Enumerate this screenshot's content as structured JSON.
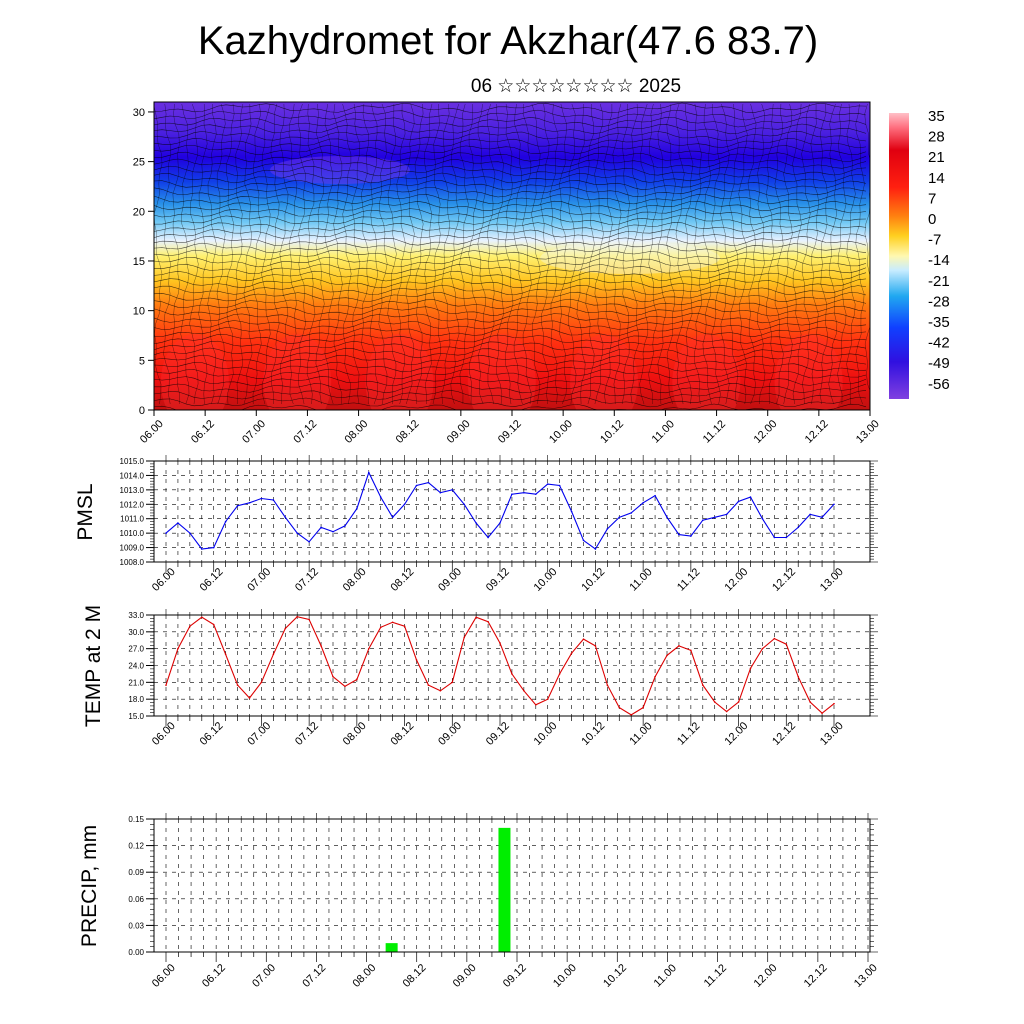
{
  "header": {
    "title": "Kazhydromet for Akzhar(47.6 83.7)",
    "subtitle": "06 ☆☆☆☆☆☆☆☆ 2025"
  },
  "time_labels": [
    "06.00",
    "06.12",
    "07.00",
    "07.12",
    "08.00",
    "08.12",
    "09.00",
    "09.12",
    "10.00",
    "10.12",
    "11.00",
    "11.12",
    "12.00",
    "12.12",
    "13.00"
  ],
  "chart_data": [
    {
      "type": "heatmap",
      "title": "",
      "xlabel": "",
      "ylabel": "",
      "x_categories": [
        "06.00",
        "06.12",
        "07.00",
        "07.12",
        "08.00",
        "08.12",
        "09.00",
        "09.12",
        "10.00",
        "10.12",
        "11.00",
        "11.12",
        "12.00",
        "12.12",
        "13.00"
      ],
      "yticks": [
        0,
        5,
        10,
        15,
        20,
        25,
        30
      ],
      "ylim": [
        0,
        31
      ],
      "colorbar": {
        "labels": [
          "35",
          "28",
          "21",
          "14",
          "7",
          "0",
          "-7",
          "-14",
          "-21",
          "-28",
          "-35",
          "-42",
          "-49",
          "-56"
        ],
        "range": [
          -63,
          42
        ]
      },
      "grid": false,
      "legend": "colorbar-right"
    },
    {
      "type": "line",
      "ylabel": "PMSL",
      "xlabel": "",
      "x": [
        "06.00",
        "06.03",
        "06.06",
        "06.09",
        "06.12",
        "06.15",
        "06.18",
        "06.21",
        "07.00",
        "07.03",
        "07.06",
        "07.09",
        "07.12",
        "07.15",
        "07.18",
        "07.21",
        "08.00",
        "08.03",
        "08.06",
        "08.09",
        "08.12",
        "08.15",
        "08.18",
        "08.21",
        "09.00",
        "09.03",
        "09.06",
        "09.09",
        "09.12",
        "09.15",
        "09.18",
        "09.21",
        "10.00",
        "10.03",
        "10.06",
        "10.09",
        "10.12",
        "10.15",
        "10.18",
        "10.21",
        "11.00",
        "11.03",
        "11.06",
        "11.09",
        "11.12",
        "11.15",
        "11.18",
        "11.21",
        "12.00",
        "12.03",
        "12.06",
        "12.09",
        "12.12",
        "12.15",
        "12.18",
        "12.21",
        "13.00"
      ],
      "values": [
        1010.0,
        1010.7,
        1010.0,
        1008.9,
        1009.0,
        1010.8,
        1011.9,
        1012.1,
        1012.4,
        1012.3,
        1011.1,
        1010.0,
        1009.4,
        1010.4,
        1010.1,
        1010.5,
        1011.7,
        1014.2,
        1012.5,
        1011.1,
        1012.0,
        1013.3,
        1013.5,
        1012.8,
        1013.0,
        1012.0,
        1010.7,
        1009.7,
        1010.7,
        1012.7,
        1012.8,
        1012.7,
        1013.4,
        1013.3,
        1011.5,
        1009.5,
        1008.9,
        1010.3,
        1011.1,
        1011.4,
        1012.1,
        1012.6,
        1011.1,
        1009.9,
        1009.8,
        1010.9,
        1011.1,
        1011.3,
        1012.2,
        1012.5,
        1011.0,
        1009.7,
        1009.7,
        1010.4,
        1011.3,
        1011.1,
        1012.0
      ],
      "ylim": [
        1008.0,
        1015.0
      ],
      "yticks": [
        "1008.0",
        "1009.0",
        "1010.0",
        "1011.0",
        "1012.0",
        "1013.0",
        "1014.0",
        "1015.0"
      ],
      "color": "#0000ee",
      "grid": true
    },
    {
      "type": "line",
      "ylabel": "TEMP at 2 M",
      "xlabel": "",
      "x": [
        "06.00",
        "06.03",
        "06.06",
        "06.09",
        "06.12",
        "06.15",
        "06.18",
        "06.21",
        "07.00",
        "07.03",
        "07.06",
        "07.09",
        "07.12",
        "07.15",
        "07.18",
        "07.21",
        "08.00",
        "08.03",
        "08.06",
        "08.09",
        "08.12",
        "08.15",
        "08.18",
        "08.21",
        "09.00",
        "09.03",
        "09.06",
        "09.09",
        "09.12",
        "09.15",
        "09.18",
        "09.21",
        "10.00",
        "10.03",
        "10.06",
        "10.09",
        "10.12",
        "10.15",
        "10.18",
        "10.21",
        "11.00",
        "11.03",
        "11.06",
        "11.09",
        "11.12",
        "11.15",
        "11.18",
        "11.21",
        "12.00",
        "12.03",
        "12.06",
        "12.09",
        "12.12",
        "12.15",
        "12.18",
        "12.21",
        "13.00"
      ],
      "values": [
        20.5,
        27.0,
        31.0,
        32.6,
        31.3,
        26.0,
        20.5,
        18.2,
        21.0,
        26.0,
        30.6,
        32.7,
        32.2,
        27.5,
        22.0,
        20.3,
        21.5,
        27.0,
        30.8,
        31.7,
        31.0,
        25.0,
        20.5,
        19.5,
        21.0,
        29.0,
        32.6,
        31.8,
        28.0,
        22.5,
        19.5,
        17.0,
        18.0,
        22.5,
        26.2,
        28.7,
        27.5,
        20.5,
        16.5,
        15.2,
        16.5,
        22.0,
        25.8,
        27.5,
        26.7,
        20.5,
        17.5,
        15.8,
        17.5,
        23.5,
        27.0,
        28.8,
        27.8,
        22.0,
        17.5,
        15.5,
        17.2
      ],
      "ylim": [
        15.0,
        33.0
      ],
      "yticks": [
        "15.0",
        "18.0",
        "21.0",
        "24.0",
        "27.0",
        "30.0",
        "33.0"
      ],
      "color": "#dd0000",
      "grid": true
    },
    {
      "type": "bar",
      "ylabel": "PRECIP, mm",
      "xlabel": "",
      "x": [
        "08.06",
        "09.09"
      ],
      "values": [
        0.01,
        0.14
      ],
      "ylim": [
        0.0,
        0.15
      ],
      "yticks": [
        "0.00",
        "0.03",
        "0.06",
        "0.09",
        "0.12",
        "0.15"
      ],
      "color": "#00ee00",
      "grid": true
    }
  ]
}
